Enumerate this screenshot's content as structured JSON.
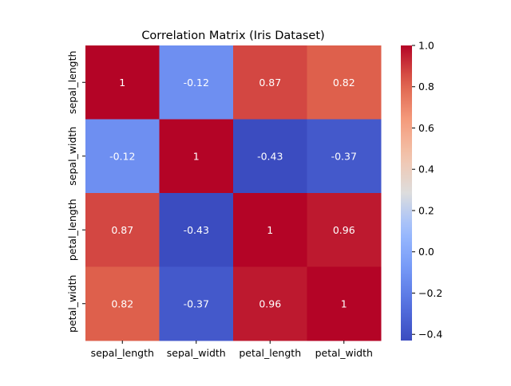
{
  "chart_data": {
    "type": "heatmap",
    "title": "Correlation Matrix (Iris Dataset)",
    "xlabel": "",
    "ylabel": "",
    "x_categories": [
      "sepal_length",
      "sepal_width",
      "petal_length",
      "petal_width"
    ],
    "y_categories": [
      "sepal_length",
      "sepal_width",
      "petal_length",
      "petal_width"
    ],
    "values": [
      [
        1,
        -0.12,
        0.87,
        0.82
      ],
      [
        -0.12,
        1,
        -0.43,
        -0.37
      ],
      [
        0.87,
        -0.43,
        1,
        0.96
      ],
      [
        0.82,
        -0.37,
        0.96,
        1
      ]
    ],
    "annotations": [
      [
        "1",
        "-0.12",
        "0.87",
        "0.82"
      ],
      [
        "-0.12",
        "1",
        "-0.43",
        "-0.37"
      ],
      [
        "0.87",
        "-0.43",
        "1",
        "0.96"
      ],
      [
        "0.82",
        "-0.37",
        "0.96",
        "1"
      ]
    ],
    "colormap": "coolwarm",
    "color_range": [
      -0.43,
      1.0
    ],
    "colorbar_ticks": [
      "1.0",
      "0.8",
      "0.6",
      "0.4",
      "0.2",
      "0.0",
      "−0.2",
      "−0.4"
    ],
    "colorbar_tick_values": [
      1.0,
      0.8,
      0.6,
      0.4,
      0.2,
      0.0,
      -0.2,
      -0.4
    ],
    "colorbar": "right"
  }
}
